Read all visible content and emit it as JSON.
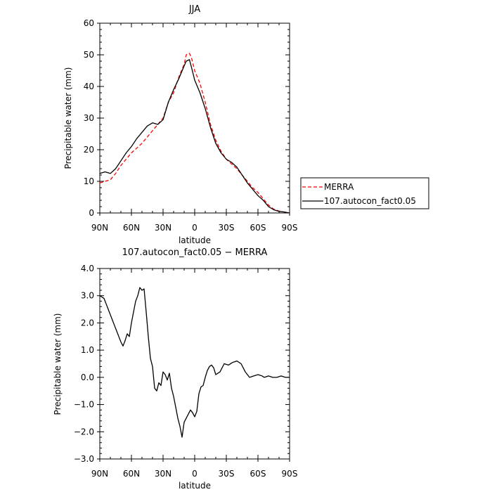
{
  "chart_data": [
    {
      "type": "line",
      "title": "JJA",
      "xlabel": "latitude",
      "ylabel": "Precipitable water (mm)",
      "xlim": [
        90,
        -90
      ],
      "ylim": [
        0,
        60
      ],
      "x_ticks": [
        90,
        60,
        30,
        0,
        -30,
        -60,
        -90
      ],
      "x_tick_labels": [
        "90N",
        "60N",
        "30N",
        "0",
        "30S",
        "60S",
        "90S"
      ],
      "y_ticks": [
        0,
        10,
        20,
        30,
        40,
        50,
        60
      ],
      "y_tick_labels": [
        "0",
        "10",
        "20",
        "30",
        "40",
        "50",
        "60"
      ],
      "legend_position": "right",
      "series": [
        {
          "name": "MERRA",
          "color": "#ff0000",
          "dash": "dashed",
          "x": [
            90,
            85,
            80,
            75,
            70,
            65,
            60,
            55,
            50,
            45,
            40,
            35,
            30,
            25,
            20,
            15,
            10,
            8,
            5,
            3,
            0,
            -5,
            -10,
            -15,
            -20,
            -25,
            -30,
            -35,
            -40,
            -45,
            -50,
            -55,
            -60,
            -65,
            -70,
            -75,
            -80,
            -85,
            -90
          ],
          "y": [
            9.5,
            10,
            10.5,
            12.5,
            15,
            17,
            19,
            20.5,
            22,
            24,
            26,
            28,
            30,
            35,
            38,
            43,
            47,
            50,
            50.5,
            49,
            45,
            41,
            35,
            28,
            23,
            19.5,
            17,
            15.5,
            14,
            12,
            10,
            8,
            6.5,
            4.5,
            2.5,
            1.2,
            0.6,
            0.3,
            0
          ]
        },
        {
          "name": "107.autocon_fact0.05",
          "color": "#000000",
          "dash": "solid",
          "x": [
            90,
            85,
            80,
            75,
            70,
            65,
            60,
            55,
            50,
            45,
            40,
            35,
            30,
            25,
            20,
            15,
            10,
            8,
            5,
            3,
            0,
            -5,
            -10,
            -15,
            -20,
            -25,
            -30,
            -35,
            -40,
            -45,
            -50,
            -55,
            -60,
            -65,
            -70,
            -75,
            -80,
            -85,
            -90
          ],
          "y": [
            12.5,
            13,
            12.5,
            14,
            16.5,
            19,
            21,
            23.5,
            25.5,
            27.5,
            28.5,
            28,
            29.5,
            35,
            39,
            42.5,
            46.5,
            48,
            48.5,
            46,
            42,
            38,
            33,
            27,
            22,
            19,
            17,
            16,
            14.5,
            12,
            9.5,
            7.5,
            5.5,
            4,
            2,
            1,
            0.5,
            0.3,
            0
          ]
        }
      ]
    },
    {
      "type": "line",
      "title": "107.autocon_fact0.05 − MERRA",
      "xlabel": "latitude",
      "ylabel": "Precipitable water (mm)",
      "xlim": [
        90,
        -90
      ],
      "ylim": [
        -3.0,
        4.0
      ],
      "x_ticks": [
        90,
        60,
        30,
        0,
        -30,
        -60,
        -90
      ],
      "x_tick_labels": [
        "90N",
        "60N",
        "30N",
        "0",
        "30S",
        "60S",
        "90S"
      ],
      "y_ticks": [
        -3.0,
        -2.0,
        -1.0,
        0.0,
        1.0,
        2.0,
        3.0,
        4.0
      ],
      "y_tick_labels": [
        "−3.0",
        "−2.0",
        "−1.0",
        "0.0",
        "1.0",
        "2.0",
        "3.0",
        "4.0"
      ],
      "series": [
        {
          "color": "#000000",
          "dash": "solid",
          "x": [
            90,
            88,
            86,
            84,
            82,
            80,
            78,
            76,
            74,
            72,
            70,
            68,
            66,
            64,
            62,
            60,
            58,
            56,
            54,
            52,
            50,
            48,
            46,
            44,
            42,
            40,
            38,
            36,
            34,
            32,
            30,
            28,
            26,
            24,
            22,
            20,
            18,
            16,
            14,
            12,
            10,
            8,
            6,
            4,
            2,
            0,
            -2,
            -4,
            -6,
            -8,
            -10,
            -12,
            -14,
            -16,
            -18,
            -20,
            -24,
            -28,
            -32,
            -36,
            -40,
            -44,
            -48,
            -52,
            -56,
            -60,
            -64,
            -66,
            -70,
            -74,
            -78,
            -82,
            -86,
            -90
          ],
          "y": [
            3.0,
            2.95,
            2.9,
            2.7,
            2.5,
            2.3,
            2.1,
            1.9,
            1.7,
            1.5,
            1.3,
            1.15,
            1.35,
            1.6,
            1.5,
            2.0,
            2.4,
            2.8,
            3.0,
            3.3,
            3.2,
            3.25,
            2.4,
            1.5,
            0.7,
            0.4,
            -0.4,
            -0.5,
            -0.2,
            -0.3,
            0.2,
            0.1,
            -0.1,
            0.15,
            -0.4,
            -0.7,
            -1.1,
            -1.5,
            -1.8,
            -2.2,
            -1.65,
            -1.5,
            -1.35,
            -1.2,
            -1.3,
            -1.45,
            -1.25,
            -0.6,
            -0.35,
            -0.3,
            0.0,
            0.25,
            0.4,
            0.45,
            0.35,
            0.1,
            0.2,
            0.5,
            0.45,
            0.55,
            0.6,
            0.5,
            0.2,
            0.0,
            0.05,
            0.1,
            0.05,
            0.0,
            0.05,
            0.0,
            0.0,
            0.05,
            0.0,
            0.0
          ]
        }
      ]
    }
  ]
}
